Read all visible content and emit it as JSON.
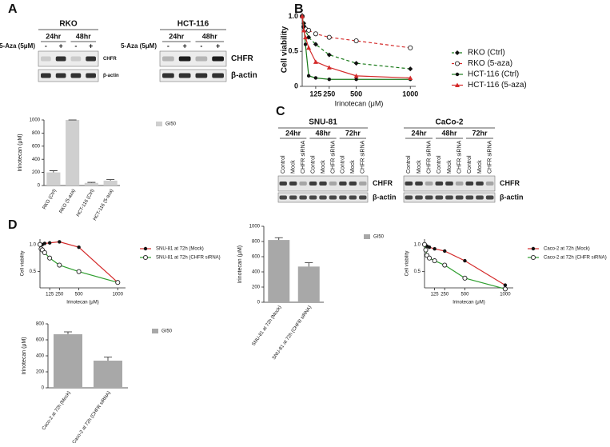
{
  "blot_a": {
    "panel": "A",
    "treatment": "5-Aza (5μM)",
    "groups": [
      {
        "title": "RKO",
        "times": [
          "24hr",
          "48hr"
        ],
        "signs": [
          "-",
          "+",
          "-",
          "+"
        ],
        "proteins": [
          "CHFR",
          "β-actin"
        ]
      },
      {
        "title": "HCT-116",
        "times": [
          "24hr",
          "48hr"
        ],
        "signs": [
          "-",
          "+",
          "-",
          "+"
        ],
        "proteins": [
          "CHFR",
          "β-actin"
        ]
      }
    ]
  },
  "blot_c": {
    "panel": "C",
    "groups": [
      {
        "title": "SNU-81",
        "times": [
          "24hr",
          "48hr",
          "72hr"
        ],
        "lanes": [
          "Control",
          "Mock",
          "CHFR siRNA",
          "Control",
          "Mock",
          "CHFR siRNA",
          "Control",
          "Mock",
          "CHFR siRNA"
        ],
        "proteins": [
          "CHFR",
          "β-actin"
        ]
      },
      {
        "title": "CaCo-2",
        "times": [
          "24hr",
          "48hr",
          "72hr"
        ],
        "lanes": [
          "Control",
          "Mock",
          "CHFR siRNA",
          "Control",
          "Mock",
          "CHFR siRNA",
          "Control",
          "Mock",
          "CHFR siRNA"
        ],
        "proteins": [
          "CHFR",
          "β-actin"
        ]
      }
    ]
  },
  "chart_data": [
    {
      "type": "bar",
      "ylabel": "Irinotecan (μM)",
      "legend": "GI50",
      "color": "#cfcfcf",
      "categories": [
        "RKO (Ctrl)",
        "RKO (5-aza)",
        "HCT-116 (Ctrl)",
        "HCT-116 (5-aza)"
      ],
      "values": [
        200,
        1000,
        40,
        75
      ],
      "errors": [
        25,
        0,
        8,
        15
      ],
      "ylim": [
        0,
        1000
      ],
      "yticks": [
        0,
        200,
        400,
        600,
        800,
        1000
      ]
    },
    {
      "type": "line",
      "panel": "B",
      "ylabel": "Cell viability",
      "xlabel": "Irinotecan (μM)",
      "x": [
        0,
        15,
        30,
        60,
        125,
        250,
        500,
        1000
      ],
      "xlim": [
        0,
        1050
      ],
      "xticks": [
        125,
        250,
        500,
        1000
      ],
      "ylim": [
        0,
        1.05
      ],
      "yticks": [
        0,
        0.5,
        {
          "value": 1,
          "label": "1.0"
        }
      ],
      "series": [
        {
          "name": "RKO (Ctrl)",
          "color": "#1a7a1a",
          "dashed": true,
          "marker": "diamond",
          "values": [
            1.0,
            0.9,
            0.8,
            0.7,
            0.6,
            0.45,
            0.33,
            0.25
          ]
        },
        {
          "name": "RKO (5-aza)",
          "color": "#d42a2a",
          "dashed": true,
          "marker": "open-circle",
          "values": [
            1.0,
            0.85,
            0.82,
            0.8,
            0.75,
            0.7,
            0.65,
            0.55
          ]
        },
        {
          "name": "HCT-116 (Ctrl)",
          "color": "#1a7a1a",
          "dashed": false,
          "marker": "dot",
          "values": [
            1.0,
            0.85,
            0.6,
            0.15,
            0.12,
            0.1,
            0.1,
            0.1
          ]
        },
        {
          "name": "HCT-116 (5-aza)",
          "color": "#d42a2a",
          "dashed": false,
          "marker": "triangle",
          "values": [
            1.0,
            0.8,
            0.7,
            0.55,
            0.35,
            0.27,
            0.15,
            0.12
          ]
        }
      ]
    },
    {
      "type": "line",
      "panel": "D",
      "ylabel": "Cell viability",
      "xlabel": "Irinotecan (μM)",
      "x": [
        0,
        15,
        30,
        60,
        125,
        250,
        500,
        1000
      ],
      "xlim": [
        0,
        1100
      ],
      "xticks": [
        125,
        250,
        500,
        1000
      ],
      "ylim": [
        0.2,
        1.1
      ],
      "yticks": [
        0.5,
        {
          "value": 1,
          "label": "1.0"
        }
      ],
      "series": [
        {
          "name": "SNU-81 at 72h (Mock)",
          "color": "#d42a2a",
          "dashed": false,
          "marker": "dot",
          "values": [
            1.0,
            1.0,
            1.0,
            1.02,
            1.03,
            1.05,
            0.95,
            0.3
          ]
        },
        {
          "name": "SNU-81 at 72h (CHFR siRNA)",
          "color": "#2e9e2e",
          "dashed": false,
          "marker": "open-circle",
          "values": [
            1.0,
            0.92,
            0.9,
            0.85,
            0.75,
            0.62,
            0.5,
            0.3
          ]
        }
      ]
    },
    {
      "type": "bar",
      "ylabel": "Irinotecan (μM)",
      "legend": "GI50",
      "color": "#a8a8a8",
      "categories": [
        "SNU-81 at 72h (Mock)",
        "SNU-81 at 72h (CHFR siRNA)"
      ],
      "values": [
        820,
        470
      ],
      "errors": [
        30,
        50
      ],
      "ylim": [
        0,
        1000
      ],
      "yticks": [
        0,
        200,
        400,
        600,
        800,
        1000
      ]
    },
    {
      "type": "line",
      "ylabel": "Cell viability",
      "xlabel": "Irinotecan (μM)",
      "x": [
        0,
        15,
        30,
        60,
        125,
        250,
        500,
        1000
      ],
      "xlim": [
        0,
        1100
      ],
      "xticks": [
        125,
        250,
        500,
        1000
      ],
      "ylim": [
        0.2,
        1.1
      ],
      "yticks": [
        0.5,
        {
          "value": 1,
          "label": "1.0"
        }
      ],
      "series": [
        {
          "name": "Caco-2 at 72h (Mock)",
          "color": "#d42a2a",
          "dashed": false,
          "marker": "dot",
          "values": [
            1.0,
            0.98,
            0.97,
            0.95,
            0.92,
            0.88,
            0.7,
            0.25
          ]
        },
        {
          "name": "Caco-2 at 72h (CHFR siRNA)",
          "color": "#2e9e2e",
          "dashed": false,
          "marker": "open-circle",
          "values": [
            1.0,
            0.9,
            0.8,
            0.75,
            0.7,
            0.62,
            0.38,
            0.18
          ]
        }
      ]
    },
    {
      "type": "bar",
      "ylabel": "Irinotecan (μM)",
      "legend": "GI50",
      "color": "#a8a8a8",
      "categories": [
        "Caco-2 at 72h (Mock)",
        "Caco-2 at 72h (CHFR siRNA)"
      ],
      "values": [
        670,
        340
      ],
      "errors": [
        30,
        45
      ],
      "ylim": [
        0,
        800
      ],
      "yticks": [
        0,
        200,
        400,
        600,
        800
      ]
    }
  ]
}
